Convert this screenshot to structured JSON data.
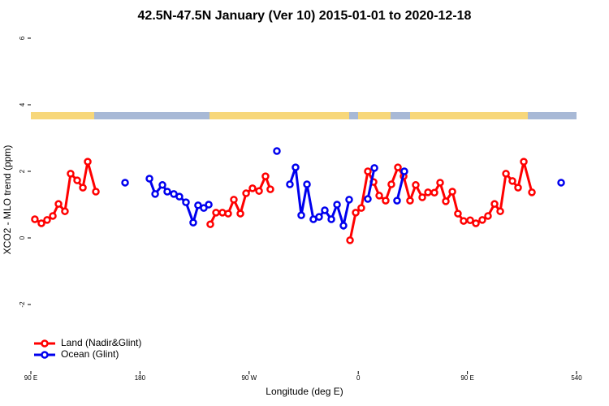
{
  "chart_data": {
    "type": "line",
    "title": "42.5N-47.5N January (Ver 10)   2015-01-01 to 2020-12-18",
    "x_label": "Longitude (deg E)",
    "y_label": "XCO2 - MLO trend (ppm)",
    "xlim": [
      90,
      540
    ],
    "ylim": [
      -4,
      6.3
    ],
    "xticks": [
      {
        "value": 90,
        "label": "90 E"
      },
      180,
      {
        "value": 270,
        "label": "90 W"
      },
      {
        "value": 360,
        "label": "0"
      },
      {
        "value": 450,
        "label": "90 E"
      },
      540
    ],
    "yticks": [
      -2,
      0,
      2,
      4,
      6
    ],
    "legend": "bottom-left",
    "series": [
      {
        "name": "Land (Nadir&Glint)",
        "color": "#ff0000",
        "x": [
          93.3,
          98.7,
          103.4,
          108.1,
          112.8,
          118.1,
          122.8,
          128.2,
          132.9,
          136.9,
          143.6,
          null,
          238,
          242.7,
          248,
          252.7,
          257.4,
          262.8,
          267.5,
          272.8,
          278.2,
          283.5,
          287.5,
          null,
          353.2,
          357.9,
          362.5,
          367.9,
          372.6,
          377.3,
          382.6,
          387.3,
          392.7,
          397.4,
          402.7,
          407.4,
          412.8,
          417.5,
          422.8,
          427.5,
          432.2,
          437.6,
          442.2,
          446.9,
          452.3,
          457,
          462.3,
          467,
          472.4,
          477.1,
          481.8,
          487.1,
          491.8,
          496.5,
          503.2
        ],
        "values": [
          0.56,
          0.44,
          0.54,
          0.66,
          1.02,
          0.8,
          1.93,
          1.73,
          1.51,
          2.29,
          1.39,
          null,
          0.41,
          0.76,
          0.76,
          0.73,
          1.15,
          0.73,
          1.34,
          1.49,
          1.41,
          1.85,
          1.46,
          null,
          -0.07,
          0.76,
          0.9,
          2.0,
          1.68,
          1.27,
          1.12,
          1.61,
          2.12,
          1.85,
          1.12,
          1.59,
          1.22,
          1.37,
          1.36,
          1.66,
          1.1,
          1.39,
          0.73,
          0.51,
          0.53,
          0.44,
          0.54,
          0.66,
          1.02,
          0.8,
          1.93,
          1.71,
          1.51,
          2.29,
          1.37
        ]
      },
      {
        "name": "Ocean (Glint)",
        "color": "#0000ee",
        "x": [
          167.7,
          null,
          187.8,
          192.5,
          198.5,
          202.5,
          207.9,
          212.5,
          217.9,
          223.9,
          227.9,
          232.6,
          236.7,
          null,
          292.9,
          null,
          303.6,
          308.3,
          313,
          317.7,
          323,
          327.7,
          332.4,
          337.8,
          342.5,
          347.8,
          352.5,
          null,
          367.9,
          373.3,
          null,
          392,
          398,
          null,
          527.3
        ],
        "values": [
          1.66,
          null,
          1.78,
          1.32,
          1.59,
          1.39,
          1.32,
          1.24,
          1.07,
          0.46,
          0.98,
          0.9,
          1.0,
          null,
          2.61,
          null,
          1.61,
          2.12,
          0.68,
          1.61,
          0.56,
          0.63,
          0.83,
          0.56,
          1.0,
          0.37,
          1.15,
          null,
          1.17,
          2.1,
          null,
          1.12,
          2.0,
          null,
          1.66
        ]
      }
    ]
  }
}
